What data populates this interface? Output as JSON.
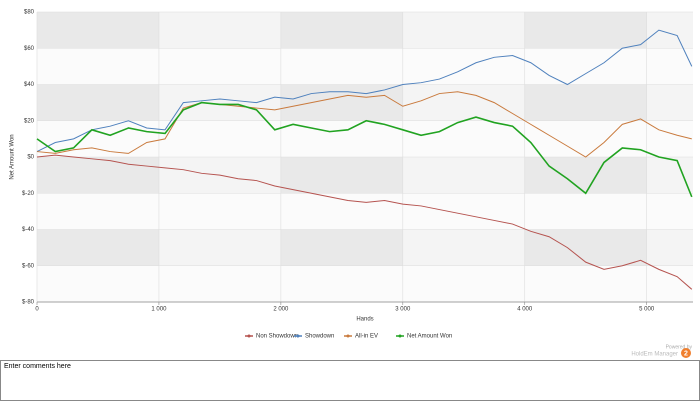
{
  "chart_data": {
    "type": "line",
    "x_label": "Hands",
    "y_label": "Net Amount Won",
    "x": [
      0,
      150,
      300,
      450,
      600,
      750,
      900,
      1050,
      1200,
      1350,
      1500,
      1650,
      1800,
      1950,
      2100,
      2250,
      2400,
      2550,
      2700,
      2850,
      3000,
      3150,
      3300,
      3450,
      3600,
      3750,
      3900,
      4050,
      4200,
      4350,
      4500,
      4650,
      4800,
      4950,
      5100,
      5250,
      5370
    ],
    "series": [
      {
        "name": "Non Showdown",
        "color": "#b5534f",
        "values": [
          0,
          1,
          0,
          -1,
          -2,
          -4,
          -5,
          -6,
          -7,
          -9,
          -10,
          -12,
          -13,
          -16,
          -18,
          -20,
          -22,
          -24,
          -25,
          -24,
          -26,
          -27,
          -29,
          -31,
          -33,
          -35,
          -37,
          -41,
          -44,
          -50,
          -58,
          -62,
          -60,
          -57,
          -62,
          -66,
          -73
        ]
      },
      {
        "name": "Showdown",
        "color": "#4f81bd",
        "values": [
          3,
          8,
          10,
          15,
          17,
          20,
          16,
          15,
          30,
          31,
          32,
          31,
          30,
          33,
          32,
          35,
          36,
          36,
          35,
          37,
          40,
          41,
          43,
          47,
          52,
          55,
          56,
          52,
          45,
          40,
          46,
          52,
          60,
          62,
          70,
          67,
          50
        ]
      },
      {
        "name": "All-in EV",
        "color": "#c97a3d",
        "values": [
          3,
          2,
          4,
          5,
          3,
          2,
          8,
          10,
          27,
          30,
          29,
          28,
          27,
          26,
          28,
          30,
          32,
          34,
          33,
          34,
          28,
          31,
          35,
          36,
          34,
          30,
          24,
          18,
          12,
          6,
          0,
          8,
          18,
          21,
          15,
          12,
          10
        ]
      },
      {
        "name": "Net Amount Won",
        "color": "#21a321",
        "values": [
          10,
          3,
          5,
          15,
          12,
          16,
          14,
          13,
          26,
          30,
          29,
          29,
          26,
          15,
          18,
          16,
          14,
          15,
          20,
          18,
          15,
          12,
          14,
          19,
          22,
          19,
          17,
          8,
          -5,
          -12,
          -20,
          -3,
          5,
          4,
          0,
          -2,
          -22
        ]
      }
    ],
    "xlim": [
      0,
      5380
    ],
    "xticks": [
      0,
      {
        "value": 1000,
        "label": "1 000"
      },
      {
        "value": 2000,
        "label": "2 000"
      },
      {
        "value": 3000,
        "label": "3 000"
      },
      {
        "value": 4000,
        "label": "4 000"
      },
      {
        "value": 5000,
        "label": "5 000"
      }
    ],
    "ylim": [
      -80,
      80
    ],
    "yticks": [
      {
        "value": -80,
        "label": "$-80"
      },
      {
        "value": -60,
        "label": "$-60"
      },
      {
        "value": -40,
        "label": "$-40"
      },
      {
        "value": -20,
        "label": "$-20"
      },
      {
        "value": 0,
        "label": "$0"
      },
      {
        "value": 20,
        "label": "$20"
      },
      {
        "value": 40,
        "label": "$40"
      },
      {
        "value": 60,
        "label": "$60"
      },
      {
        "value": 80,
        "label": "$80"
      }
    ],
    "grid": true,
    "legend_position": "bottom"
  },
  "branding": {
    "powered_by": "Powered by",
    "product": "HoldEm Manager",
    "badge": "2"
  },
  "comments": {
    "placeholder": "Enter comments here"
  }
}
